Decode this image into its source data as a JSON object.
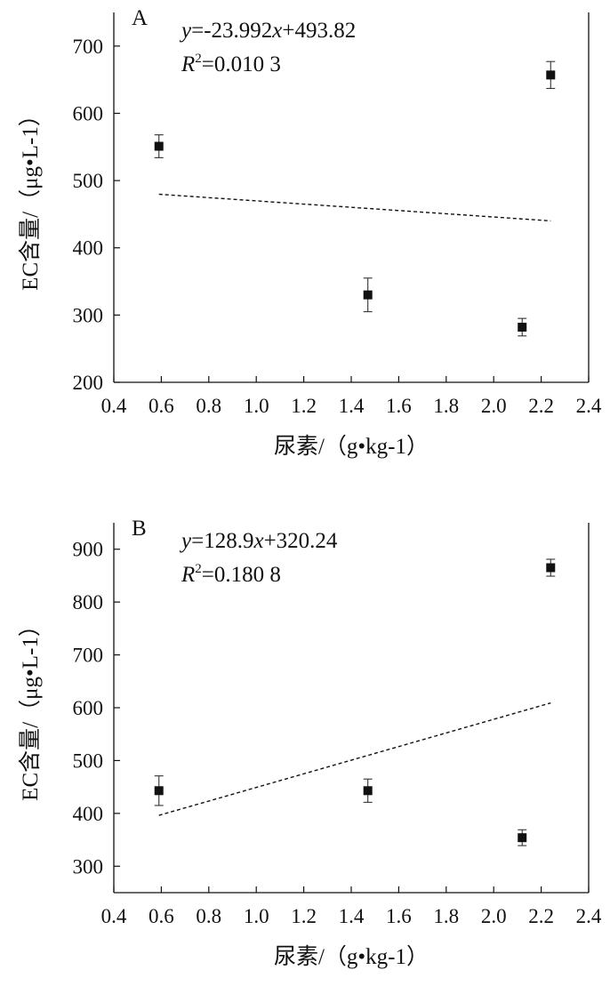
{
  "chart_data": [
    {
      "type": "scatter",
      "panel_label": "A",
      "xlabel": "尿素/（g•kg-1）",
      "ylabel": "EC含量/（μg•L-1）",
      "xlim": [
        0.4,
        2.4
      ],
      "ylim": [
        200,
        750
      ],
      "xticks": [
        "0.4",
        "0.6",
        "0.8",
        "1.0",
        "1.2",
        "1.4",
        "1.6",
        "1.8",
        "2.0",
        "2.2",
        "2.4"
      ],
      "yticks": [
        "200",
        "300",
        "400",
        "500",
        "600",
        "700"
      ],
      "points": [
        {
          "x": 0.59,
          "y": 551,
          "err": 17
        },
        {
          "x": 1.47,
          "y": 330,
          "err": 25
        },
        {
          "x": 2.12,
          "y": 282,
          "err": 13
        },
        {
          "x": 2.24,
          "y": 657,
          "err": 20
        }
      ],
      "trendline": {
        "slope": -23.992,
        "intercept": 493.82,
        "x_range": [
          0.59,
          2.24
        ],
        "style": "dashed"
      },
      "equation": {
        "y": "y",
        "text": "=-23.992",
        "x": "x",
        "rest": "+493.82"
      },
      "r2": {
        "r": "R",
        "sup": "2",
        "text": "=0.010 3"
      },
      "grid": false
    },
    {
      "type": "scatter",
      "panel_label": "B",
      "xlabel": "尿素/（g•kg-1）",
      "ylabel": "EC含量/（μg•L-1）",
      "xlim": [
        0.4,
        2.4
      ],
      "ylim": [
        250,
        950
      ],
      "xticks": [
        "0.4",
        "0.6",
        "0.8",
        "1.0",
        "1.2",
        "1.4",
        "1.6",
        "1.8",
        "2.0",
        "2.2",
        "2.4"
      ],
      "yticks": [
        "300",
        "400",
        "500",
        "600",
        "700",
        "800",
        "900"
      ],
      "points": [
        {
          "x": 0.59,
          "y": 443,
          "err": 28
        },
        {
          "x": 1.47,
          "y": 443,
          "err": 22
        },
        {
          "x": 2.12,
          "y": 354,
          "err": 15
        },
        {
          "x": 2.24,
          "y": 865,
          "err": 16
        }
      ],
      "trendline": {
        "slope": 128.9,
        "intercept": 320.24,
        "x_range": [
          0.59,
          2.24
        ],
        "style": "dashed"
      },
      "equation": {
        "y": "y",
        "text": "=128.9",
        "x": "x",
        "rest": "+320.24"
      },
      "r2": {
        "r": "R",
        "sup": "2",
        "text": "=0.180 8"
      },
      "grid": false
    }
  ]
}
